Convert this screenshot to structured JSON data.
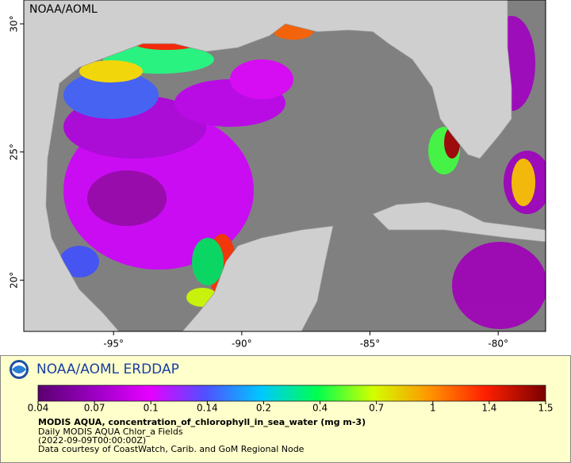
{
  "map": {
    "label": "NOAA/AOML",
    "xlim": [
      -98.5,
      -78.15
    ],
    "ylim": [
      18,
      30.93
    ],
    "xticks": [
      {
        "value": -95,
        "label": "-95°"
      },
      {
        "value": -90,
        "label": "-90°"
      },
      {
        "value": -85,
        "label": "-85°"
      },
      {
        "value": -80,
        "label": "-80°"
      }
    ],
    "yticks": [
      {
        "value": 20,
        "label": "20°"
      },
      {
        "value": 25,
        "label": "25°"
      },
      {
        "value": 30,
        "label": "30°"
      }
    ]
  },
  "legend": {
    "title": "NOAA/AOML ERDDAP",
    "colorbar_ticks": [
      0.04,
      0.07,
      0.1,
      0.14,
      0.2,
      0.4,
      0.7,
      1,
      1.4,
      1.5
    ],
    "variable": "MODIS AQUA, concentration_of_chlorophyll_in_sea_water (mg m-3)",
    "dataset": "Daily MODIS AQUA Chlor_a Fields",
    "time": "(2022-09-09T00:00:00Z)",
    "credit": "Data courtesy of CoastWatch, Carib. and GoM Regional Node"
  }
}
